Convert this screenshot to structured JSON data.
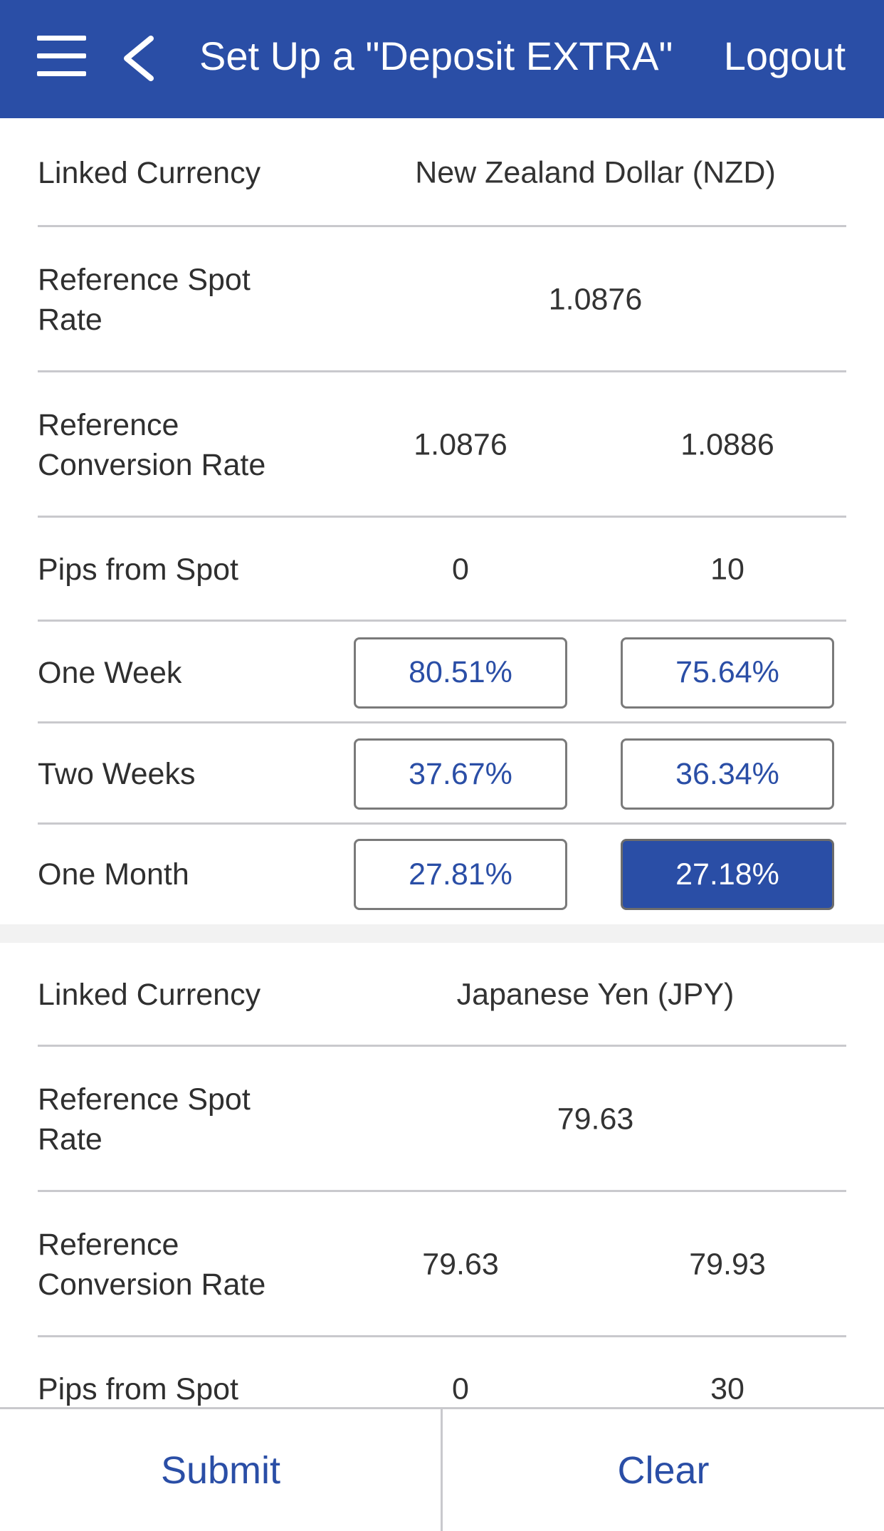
{
  "header": {
    "title": "Set Up a \"Deposit EXTRA\"",
    "logout_label": "Logout"
  },
  "sections": [
    {
      "linked_currency_label": "Linked Currency",
      "linked_currency_value": "New Zealand Dollar (NZD)",
      "spot_rate_label": "Reference Spot Rate",
      "spot_rate_value": "1.0876",
      "conversion_rate_label": "Reference Conversion Rate",
      "conversion_rates": [
        "1.0876",
        "1.0886"
      ],
      "pips_label": "Pips from Spot",
      "pips": [
        "0",
        "10"
      ],
      "tenors": [
        {
          "label": "One Week",
          "rates": [
            "80.51%",
            "75.64%"
          ]
        },
        {
          "label": "Two Weeks",
          "rates": [
            "37.67%",
            "36.34%"
          ]
        },
        {
          "label": "One Month",
          "rates": [
            "27.81%",
            "27.18%"
          ],
          "selected_index": 1
        }
      ]
    },
    {
      "linked_currency_label": "Linked Currency",
      "linked_currency_value": "Japanese Yen (JPY)",
      "spot_rate_label": "Reference Spot Rate",
      "spot_rate_value": "79.63",
      "conversion_rate_label": "Reference Conversion Rate",
      "conversion_rates": [
        "79.63",
        "79.93"
      ],
      "pips_label": "Pips from Spot",
      "pips": [
        "0",
        "30"
      ]
    }
  ],
  "footer": {
    "submit_label": "Submit",
    "clear_label": "Clear"
  },
  "colors": {
    "brand": "#2a4ea6",
    "divider": "#c9c9cd",
    "text": "#2f2f2f"
  },
  "icons": [
    "hamburger-menu-icon",
    "back-chevron-icon"
  ]
}
